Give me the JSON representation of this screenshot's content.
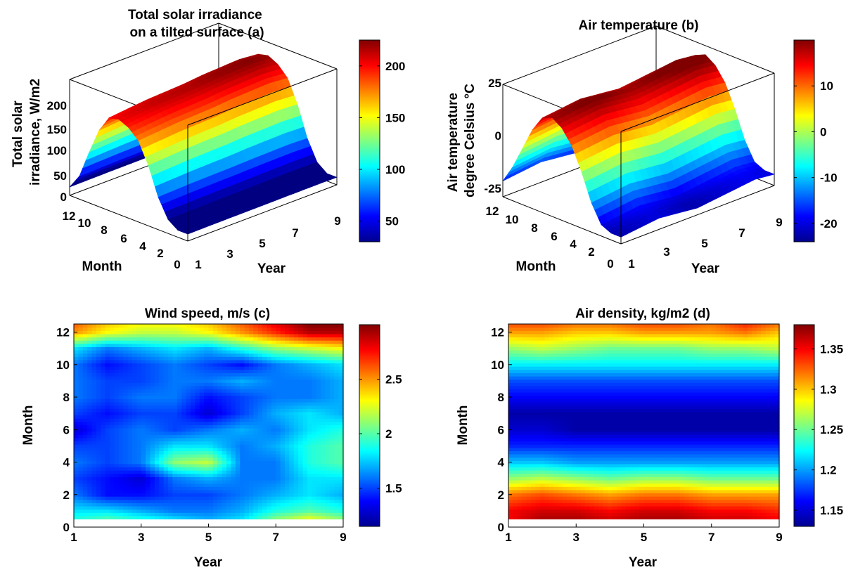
{
  "colors": {
    "colormap": "jet",
    "axis": "#000000",
    "background": "#ffffff"
  },
  "chart_data": [
    {
      "type": "surface",
      "title": [
        "Total solar irradiance",
        "on a tilted surface (a)"
      ],
      "xlabel": "Year",
      "ylabel": "Month",
      "zlabel": [
        "Total solar",
        "irradiance, W/m2"
      ],
      "xticks": [
        "1",
        "3",
        "5",
        "7",
        "9"
      ],
      "yticks": [
        "0",
        "2",
        "4",
        "6",
        "8",
        "10",
        "12"
      ],
      "zticks": [
        "0",
        "50",
        "100",
        "150",
        "200"
      ],
      "xlim": [
        1,
        9
      ],
      "ylim": [
        0,
        12
      ],
      "zlim": [
        0,
        250
      ],
      "colorbar_ticks": [
        "50",
        "100",
        "150",
        "200"
      ],
      "colorbar_range": [
        30,
        225
      ],
      "monthly_profile": [
        15,
        30,
        70,
        130,
        175,
        195,
        205,
        200,
        165,
        110,
        50,
        18
      ],
      "year_trend": [
        0,
        0.02,
        0.04,
        0.05,
        0.06,
        0.08,
        0.09,
        0.1,
        0.08
      ]
    },
    {
      "type": "surface",
      "title": [
        "Air temperature (b)"
      ],
      "xlabel": "Year",
      "ylabel": "Month",
      "zlabel": [
        "Air temperature",
        "degree Celsius °C"
      ],
      "xticks": [
        "1",
        "3",
        "5",
        "7",
        "9"
      ],
      "yticks": [
        "0",
        "2",
        "4",
        "6",
        "8",
        "10",
        "12"
      ],
      "zticks": [
        "-25",
        "0",
        "25"
      ],
      "xlim": [
        1,
        9
      ],
      "ylim": [
        0,
        12
      ],
      "zlim": [
        -25,
        25
      ],
      "colorbar_ticks": [
        "-20",
        "-10",
        "0",
        "10"
      ],
      "colorbar_range": [
        -24,
        20
      ],
      "monthly_profile": [
        -22,
        -20,
        -12,
        0,
        10,
        16,
        19,
        17,
        10,
        0,
        -10,
        -18
      ],
      "year_trend": [
        0,
        1,
        2,
        1,
        0,
        1,
        2,
        3,
        2
      ]
    },
    {
      "type": "heatmap",
      "title": "Wind speed, m/s (c)",
      "xlabel": "Year",
      "ylabel": "Month",
      "xticks": [
        "1",
        "3",
        "5",
        "7",
        "9"
      ],
      "yticks": [
        "0",
        "2",
        "4",
        "6",
        "8",
        "10",
        "12"
      ],
      "xlim": [
        1,
        9
      ],
      "ylim": [
        0,
        12.5
      ],
      "colorbar_ticks": [
        "1.5",
        "2",
        "2.5"
      ],
      "colorbar_range": [
        1.15,
        3.0
      ],
      "x": [
        1,
        2,
        3,
        4,
        5,
        6,
        7,
        8,
        9
      ],
      "y": [
        0.5,
        1,
        2,
        3,
        4,
        5,
        6,
        7,
        8,
        9,
        10,
        11,
        12,
        12.5
      ],
      "z": [
        [
          1.9,
          2.0,
          1.9,
          1.8,
          1.7,
          1.8,
          2.1,
          2.3,
          2.1
        ],
        [
          1.8,
          1.8,
          1.7,
          1.6,
          1.6,
          1.7,
          1.9,
          2.0,
          1.9
        ],
        [
          1.6,
          1.4,
          1.4,
          1.5,
          1.5,
          1.6,
          1.7,
          1.8,
          1.7
        ],
        [
          1.5,
          1.4,
          1.3,
          1.6,
          1.7,
          1.6,
          1.6,
          1.8,
          1.8
        ],
        [
          1.6,
          1.5,
          1.6,
          2.1,
          2.2,
          1.6,
          1.6,
          1.9,
          2.0
        ],
        [
          1.5,
          1.5,
          1.6,
          1.8,
          1.8,
          1.6,
          1.7,
          1.9,
          2.0
        ],
        [
          1.3,
          1.5,
          1.6,
          1.5,
          1.6,
          1.7,
          1.6,
          1.8,
          1.9
        ],
        [
          1.5,
          1.4,
          1.5,
          1.5,
          1.3,
          1.5,
          1.7,
          1.8,
          1.7
        ],
        [
          1.6,
          1.5,
          1.6,
          1.6,
          1.4,
          1.5,
          1.6,
          1.6,
          1.7
        ],
        [
          1.6,
          1.5,
          1.5,
          1.6,
          1.6,
          1.7,
          1.6,
          1.6,
          1.7
        ],
        [
          1.6,
          1.4,
          1.5,
          1.6,
          1.5,
          1.4,
          1.6,
          1.7,
          1.8
        ],
        [
          1.8,
          1.6,
          1.7,
          1.8,
          1.7,
          1.9,
          2.1,
          2.2,
          2.3
        ],
        [
          2.5,
          2.3,
          2.2,
          2.2,
          2.3,
          2.5,
          2.7,
          2.9,
          2.9
        ],
        [
          2.6,
          2.4,
          2.3,
          2.3,
          2.4,
          2.6,
          2.8,
          3.0,
          3.0
        ]
      ]
    },
    {
      "type": "heatmap",
      "title": "Air density, kg/m2 (d)",
      "xlabel": "Year",
      "ylabel": "Month",
      "xticks": [
        "1",
        "3",
        "5",
        "7",
        "9"
      ],
      "yticks": [
        "0",
        "2",
        "4",
        "6",
        "8",
        "10",
        "12"
      ],
      "xlim": [
        1,
        9
      ],
      "ylim": [
        0,
        12.5
      ],
      "colorbar_ticks": [
        "1.15",
        "1.2",
        "1.25",
        "1.3",
        "1.35"
      ],
      "colorbar_range": [
        1.13,
        1.38
      ],
      "x": [
        1,
        2,
        3,
        4,
        5,
        6,
        7,
        8,
        9
      ],
      "y": [
        0.5,
        1,
        2,
        3,
        4,
        5,
        6,
        7,
        8,
        9,
        10,
        11,
        12,
        12.5
      ],
      "z": [
        [
          1.35,
          1.37,
          1.37,
          1.36,
          1.37,
          1.37,
          1.36,
          1.36,
          1.35
        ],
        [
          1.35,
          1.36,
          1.36,
          1.35,
          1.36,
          1.36,
          1.35,
          1.35,
          1.34
        ],
        [
          1.32,
          1.33,
          1.32,
          1.31,
          1.32,
          1.32,
          1.31,
          1.31,
          1.31
        ],
        [
          1.26,
          1.27,
          1.26,
          1.25,
          1.26,
          1.26,
          1.25,
          1.25,
          1.25
        ],
        [
          1.21,
          1.21,
          1.2,
          1.2,
          1.2,
          1.2,
          1.2,
          1.2,
          1.2
        ],
        [
          1.17,
          1.17,
          1.17,
          1.17,
          1.17,
          1.17,
          1.17,
          1.17,
          1.17
        ],
        [
          1.15,
          1.15,
          1.14,
          1.14,
          1.14,
          1.14,
          1.14,
          1.14,
          1.14
        ],
        [
          1.14,
          1.14,
          1.14,
          1.14,
          1.14,
          1.14,
          1.14,
          1.14,
          1.14
        ],
        [
          1.16,
          1.16,
          1.16,
          1.16,
          1.16,
          1.16,
          1.16,
          1.16,
          1.16
        ],
        [
          1.18,
          1.18,
          1.18,
          1.18,
          1.18,
          1.18,
          1.18,
          1.18,
          1.18
        ],
        [
          1.22,
          1.22,
          1.22,
          1.22,
          1.22,
          1.22,
          1.22,
          1.22,
          1.22
        ],
        [
          1.26,
          1.27,
          1.26,
          1.25,
          1.25,
          1.25,
          1.26,
          1.26,
          1.27
        ],
        [
          1.31,
          1.31,
          1.3,
          1.3,
          1.31,
          1.31,
          1.31,
          1.32,
          1.3
        ],
        [
          1.33,
          1.33,
          1.32,
          1.32,
          1.33,
          1.33,
          1.32,
          1.34,
          1.32
        ]
      ]
    }
  ]
}
